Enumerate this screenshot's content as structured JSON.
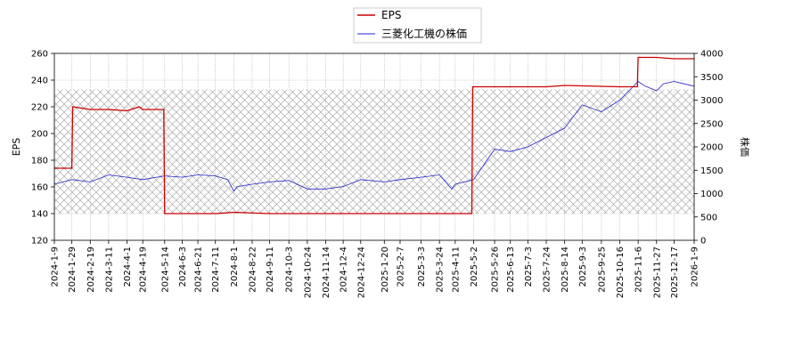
{
  "chart_data": {
    "type": "line",
    "title": "",
    "grid": true,
    "legend_position": "top-center",
    "colors": {
      "eps": "#cc0000",
      "price": "#2222cc",
      "grid": "#b0b0b0",
      "hatch": "#999999"
    },
    "x_ticks": [
      "2024-1-9",
      "2024-1-29",
      "2024-2-19",
      "2024-3-11",
      "2024-4-1",
      "2024-4-19",
      "2024-5-14",
      "2024-6-3",
      "2024-6-21",
      "2024-7-11",
      "2024-8-1",
      "2024-8-22",
      "2024-9-11",
      "2024-10-3",
      "2024-10-24",
      "2024-11-14",
      "2024-12-4",
      "2024-12-24",
      "2025-1-20",
      "2025-2-7",
      "2025-3-3",
      "2025-3-24",
      "2025-4-11",
      "2025-5-2",
      "2025-5-26",
      "2025-6-13",
      "2025-7-3",
      "2025-7-24",
      "2025-8-14",
      "2025-9-3",
      "2025-9-25",
      "2025-10-16",
      "2025-11-6",
      "2025-11-27",
      "2025-12-17",
      "2026-1-9"
    ],
    "y_left": {
      "label": "EPS",
      "ylim": [
        120,
        260
      ],
      "ticks": [
        120,
        140,
        160,
        180,
        200,
        220,
        240,
        260
      ]
    },
    "y_right": {
      "label": "株価",
      "ylim": [
        0,
        4000
      ],
      "ticks": [
        0,
        500,
        1000,
        1500,
        2000,
        2500,
        3000,
        3500,
        4000
      ]
    },
    "series": [
      {
        "name": "EPS",
        "axis": "left",
        "x": [
          "2024-1-9",
          "2024-1-29",
          "2024-1-30",
          "2024-2-19",
          "2024-3-11",
          "2024-4-1",
          "2024-4-15",
          "2024-4-19",
          "2024-5-13",
          "2024-5-14",
          "2024-6-3",
          "2024-7-11",
          "2024-8-1",
          "2024-9-11",
          "2024-10-24",
          "2024-12-4",
          "2025-1-20",
          "2025-3-3",
          "2025-4-11",
          "2025-4-30",
          "2025-5-1",
          "2025-5-26",
          "2025-7-24",
          "2025-8-14",
          "2025-10-16",
          "2025-11-5",
          "2025-11-6",
          "2025-11-27",
          "2025-12-17",
          "2026-1-9"
        ],
        "values": [
          174,
          174,
          220,
          218,
          218,
          217,
          220,
          218,
          218,
          140,
          140,
          140,
          141,
          140,
          140,
          140,
          140,
          140,
          140,
          140,
          235,
          235,
          235,
          236,
          235,
          235,
          257,
          257,
          256,
          256
        ]
      },
      {
        "name": "三菱化工機の株価",
        "axis": "right",
        "x": [
          "2024-1-9",
          "2024-1-29",
          "2024-2-19",
          "2024-3-11",
          "2024-4-1",
          "2024-4-19",
          "2024-5-14",
          "2024-6-3",
          "2024-6-21",
          "2024-7-11",
          "2024-7-25",
          "2024-8-1",
          "2024-8-5",
          "2024-8-22",
          "2024-9-11",
          "2024-10-3",
          "2024-10-24",
          "2024-11-14",
          "2024-12-4",
          "2024-12-24",
          "2025-1-20",
          "2025-2-7",
          "2025-3-3",
          "2025-3-24",
          "2025-4-7",
          "2025-4-11",
          "2025-5-2",
          "2025-5-26",
          "2025-6-13",
          "2025-7-3",
          "2025-7-24",
          "2025-8-14",
          "2025-9-3",
          "2025-9-25",
          "2025-10-16",
          "2025-11-6",
          "2025-11-14",
          "2025-11-27",
          "2025-12-5",
          "2025-12-17",
          "2026-1-9"
        ],
        "values": [
          1200,
          1300,
          1250,
          1400,
          1350,
          1300,
          1380,
          1350,
          1400,
          1380,
          1300,
          1050,
          1150,
          1200,
          1250,
          1280,
          1100,
          1100,
          1150,
          1300,
          1250,
          1300,
          1350,
          1400,
          1100,
          1200,
          1300,
          1950,
          1900,
          2000,
          2200,
          2400,
          2900,
          2750,
          3000,
          3400,
          3300,
          3200,
          3350,
          3400,
          3300
        ]
      }
    ]
  }
}
